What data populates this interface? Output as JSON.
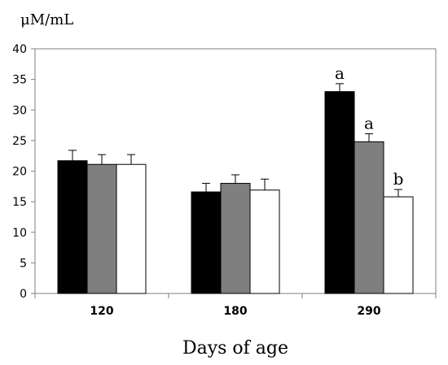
{
  "chart_data": {
    "type": "bar",
    "title": "",
    "ylabel": "μM/mL",
    "xlabel": "Days of age",
    "ylim": [
      0,
      40
    ],
    "ytick_step": 5,
    "yticks": [
      "0",
      "5",
      "10",
      "15",
      "20",
      "25",
      "30",
      "35",
      "40"
    ],
    "grid": false,
    "legend": "none",
    "categories": [
      "120",
      "180",
      "290"
    ],
    "series": [
      {
        "color": "#000000",
        "values": [
          21.7,
          16.6,
          33.0
        ],
        "errors": [
          1.7,
          1.4,
          1.3
        ],
        "annotations": [
          "",
          "",
          "a"
        ]
      },
      {
        "color": "#7f7f7f",
        "values": [
          21.1,
          18.0,
          24.8
        ],
        "errors": [
          1.6,
          1.4,
          1.3
        ],
        "annotations": [
          "",
          "",
          "a"
        ]
      },
      {
        "color": "#ffffff",
        "values": [
          21.1,
          16.9,
          15.8
        ],
        "errors": [
          1.6,
          1.8,
          1.2
        ],
        "annotations": [
          "",
          "",
          "b"
        ]
      }
    ]
  }
}
